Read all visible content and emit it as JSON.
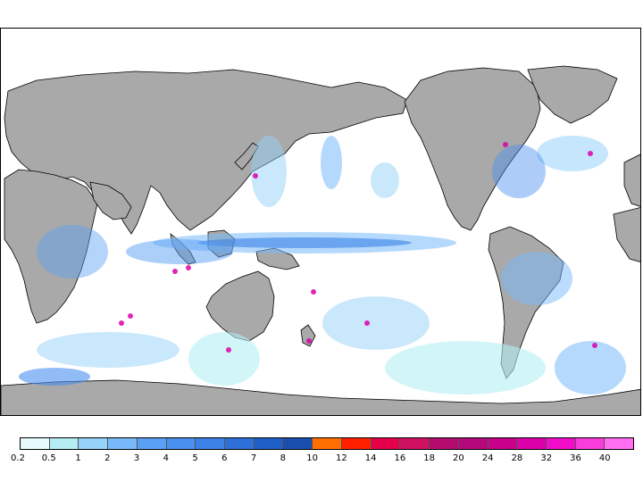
{
  "map": {
    "land_color": "#a9a9a9",
    "ocean_color": "#ffffff",
    "border_color": "#000000"
  },
  "legend": {
    "labels": [
      "0.2",
      "0.5",
      "1",
      "2",
      "3",
      "4",
      "5",
      "6",
      "7",
      "8",
      "10",
      "12",
      "14",
      "16",
      "18",
      "20",
      "24",
      "28",
      "32",
      "36",
      "40"
    ],
    "colors": [
      "#e6fbfb",
      "#b4eef4",
      "#96d2fa",
      "#78b9fa",
      "#5aa0f5",
      "#4a90f0",
      "#3c82e6",
      "#2f6fd9",
      "#1e5fc8",
      "#1a4fb0",
      "#ff6e00",
      "#ff2000",
      "#e6004a",
      "#d01060",
      "#b40c6e",
      "#b4087c",
      "#c8008c",
      "#dc00aa",
      "#f00cc8",
      "#fa3cdc",
      "#ff6ef0"
    ]
  }
}
